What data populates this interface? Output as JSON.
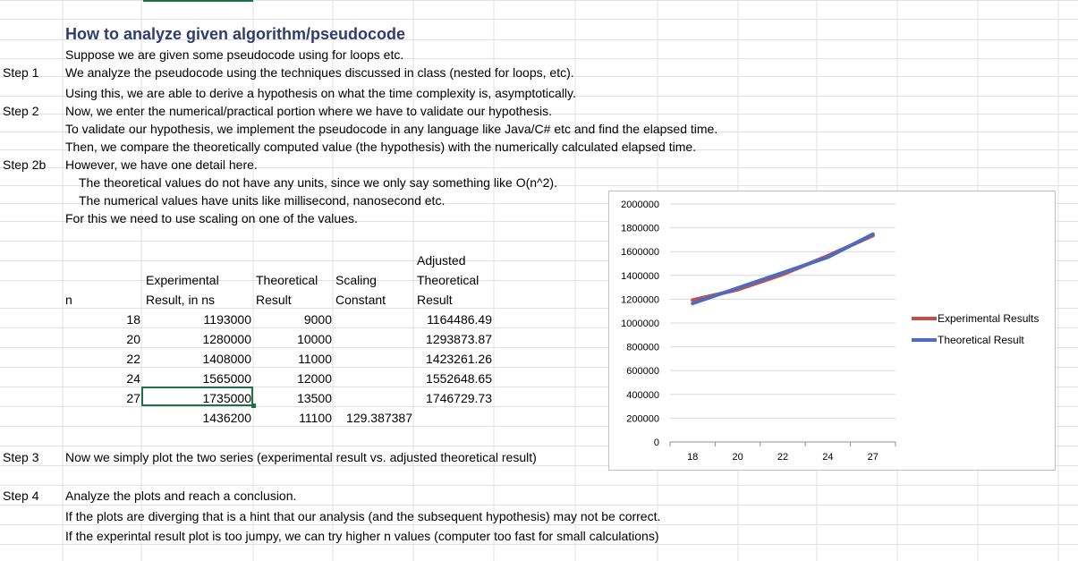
{
  "title": "How to analyze given algorithm/pseudocode",
  "steps": {
    "s1": "Step 1",
    "s2": "Step 2",
    "s2b": "Step 2b",
    "s3": "Step 3",
    "s4": "Step 4"
  },
  "lines": {
    "l1": "Suppose we are given some pseudocode using for loops etc.",
    "l2": "We analyze the pseudocode using the techniques discussed in class (nested for loops, etc).",
    "l3": "Using this, we are able to derive a hypothesis on what the time complexity is, asymptotically.",
    "l4": "Now, we enter the numerical/practical portion where we have to validate our hypothesis.",
    "l5": "To validate our hypothesis, we implement the pseudocode in any language like Java/C# etc and find the elapsed time.",
    "l6": "Then, we compare the theoretically computed value (the hypothesis) with the numerically calculated elapsed time.",
    "l7": "However, we have one detail here.",
    "l8": "The theoretical values do not have any units, since we only say something like O(n^2).",
    "l9": "The numerical values have units like millisecond, nanosecond etc.",
    "l10": "For this we need to use scaling on one of the values.",
    "l11": "Now we simply plot the two series (experimental result vs. adjusted theoretical result)",
    "l12": "Analyze the plots and reach a conclusion.",
    "l13": "If the plots are diverging that is a hint that our analysis (and the subsequent hypothesis) may not be correct.",
    "l14": "If the experintal result plot is too jumpy, we can try higher n values (computer too fast for small calculations)"
  },
  "table": {
    "h_n": "n",
    "h_exp1": "Experimental",
    "h_exp2": "Result, in ns",
    "h_theo1": "Theoretical",
    "h_theo2": "Result",
    "h_scale1": "Scaling",
    "h_scale2": "Constant",
    "h_adj1": "Adjusted",
    "h_adj2": "Theoretical",
    "h_adj3": "Result",
    "rows": [
      {
        "n": "18",
        "exp": "1193000",
        "theo": "9000",
        "adj": "1164486.49"
      },
      {
        "n": "20",
        "exp": "1280000",
        "theo": "10000",
        "adj": "1293873.87"
      },
      {
        "n": "22",
        "exp": "1408000",
        "theo": "11000",
        "adj": "1423261.26"
      },
      {
        "n": "24",
        "exp": "1565000",
        "theo": "12000",
        "adj": "1552648.65"
      },
      {
        "n": "27",
        "exp": "1735000",
        "theo": "13500",
        "adj": "1746729.73"
      }
    ],
    "avg_exp": "1436200",
    "avg_theo": "11100",
    "scale_const": "129.387387"
  },
  "chart_data": {
    "type": "line",
    "categories": [
      "18",
      "20",
      "22",
      "24",
      "27"
    ],
    "series": [
      {
        "name": "Experimental Results",
        "color": "#c0504d",
        "values": [
          1193000,
          1280000,
          1408000,
          1565000,
          1735000
        ]
      },
      {
        "name": "Theoretical Result",
        "color": "#4f6bbf",
        "values": [
          1164486.49,
          1293873.87,
          1423261.26,
          1552648.65,
          1746729.73
        ]
      }
    ],
    "ylim": [
      0,
      2000000
    ],
    "yticks": [
      "0",
      "200000",
      "400000",
      "600000",
      "800000",
      "1000000",
      "1200000",
      "1400000",
      "1600000",
      "1800000",
      "2000000"
    ],
    "grid": true,
    "legend": "right"
  }
}
